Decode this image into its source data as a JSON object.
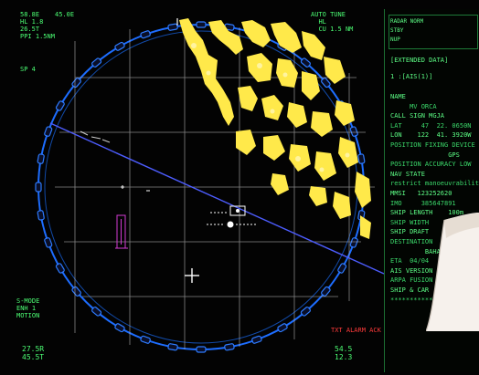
{
  "screen": {
    "top_left": [
      "58.8E",
      "HL 1.8",
      "26.5T",
      "PPI 1.5NM"
    ],
    "top_center": "45.0E",
    "top_right": [
      "AUTO TUNE",
      "HL",
      "CU 1.5 NM"
    ],
    "left_mid": "SP 4",
    "bottom_left": [
      "S-MODE",
      "ENH 1",
      "MOTION"
    ],
    "bottom_left_values": [
      "27.5R",
      "45.5T"
    ],
    "bottom_center_left": "+",
    "bottom_right": [
      "TXT ALARM",
      "ACK"
    ],
    "bottom_right_values": [
      "54.5",
      "12.3"
    ],
    "alarm_label": "TXT ALARM ACK"
  },
  "panel": {
    "header_lines": [
      "RADAR NORM",
      "STBY",
      "NUP"
    ],
    "title": "[EXTENDED DATA]",
    "ais_index": "1 :[AIS(1)]",
    "rows": [
      "NAME",
      "     MV ORCA",
      "CALL SIGN MGJA",
      "LAT     47  22. 0650N",
      "LON    122  41. 3920W",
      "POSITION FIXING DEVICE",
      "               GPS",
      "POSITION ACCURACY LOW",
      "NAV STATE",
      "restrict manoeuvrability",
      "MMSI   123252620",
      "IMO     385647891",
      "SHIP LENGTH    100m",
      "SHIP WIDTH",
      "SHIP DRAFT",
      "DESTINATION",
      "         BAHA",
      "ETA  04/04",
      "AIS VERSION",
      "ARPA FUSION",
      "SHIP & CAR",
      "************"
    ]
  },
  "colors": {
    "radar_ring": "#2e7bff",
    "echo": "#ffe94a",
    "text": "#4cff74",
    "alarm": "#ff3b3b",
    "target_box": "#d33bd3"
  }
}
